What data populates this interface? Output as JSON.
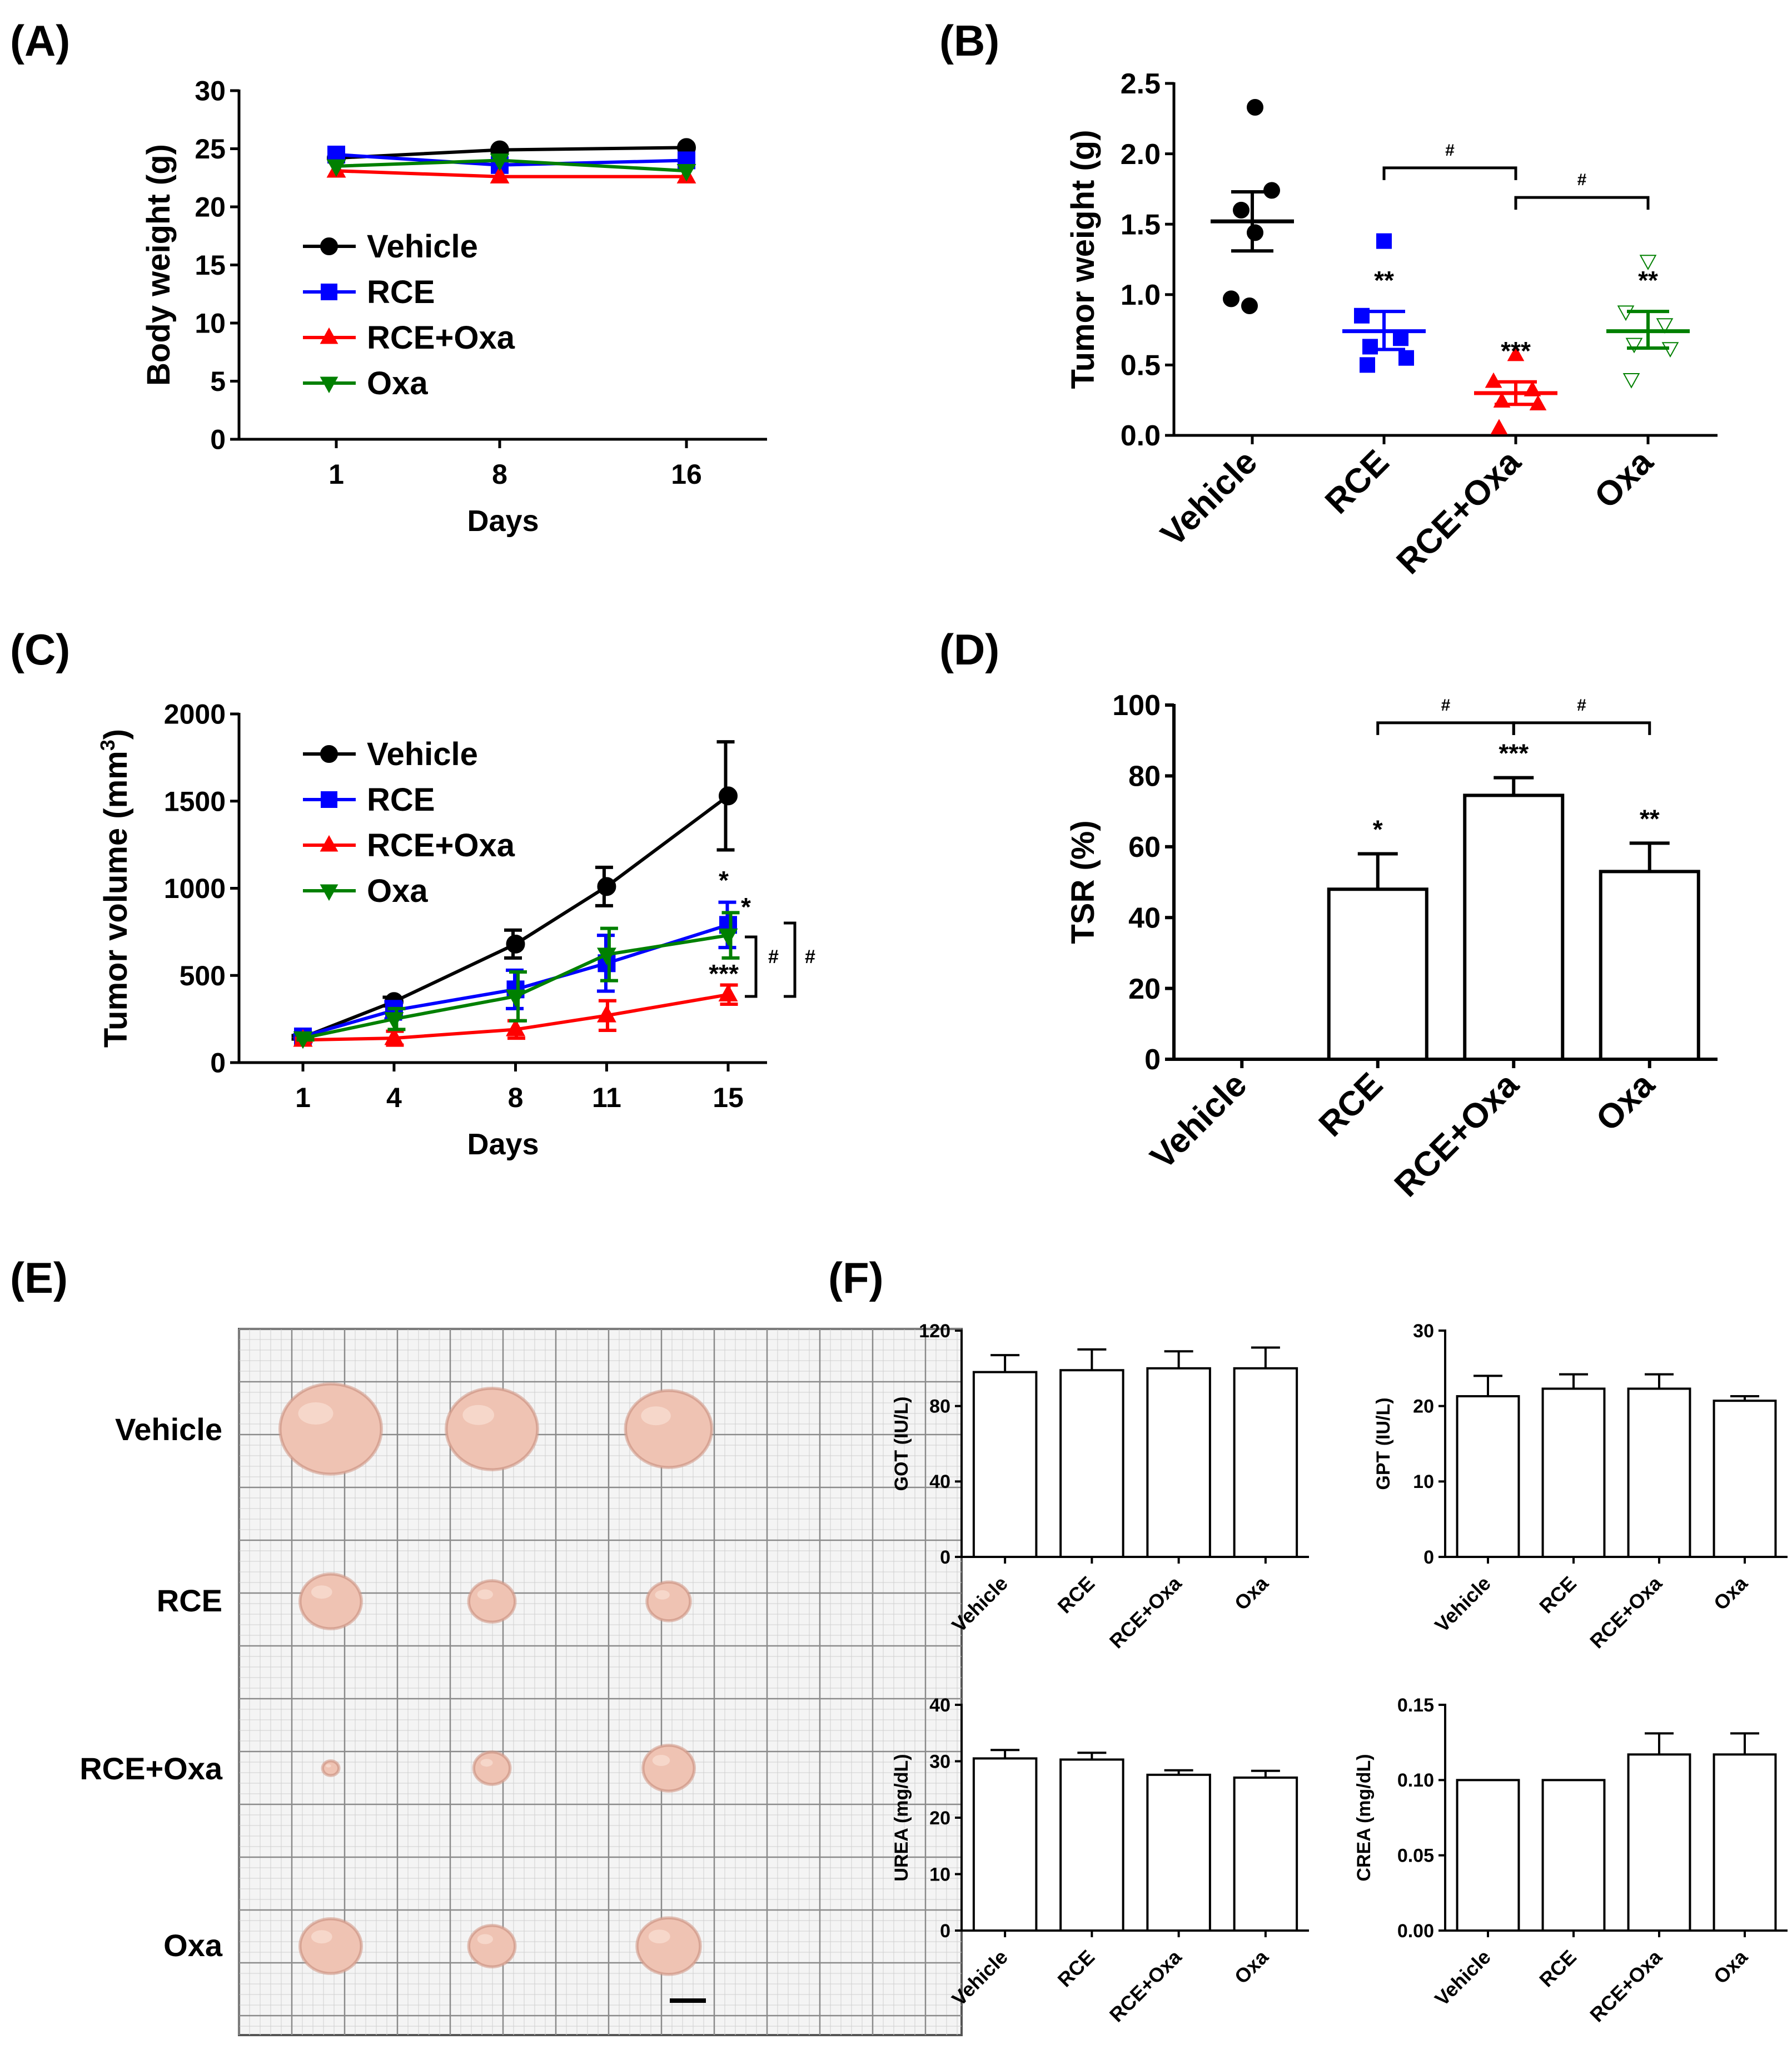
{
  "colors": {
    "vehicle": "#000000",
    "rce": "#0000ff",
    "rce_oxa": "#ff0000",
    "oxa": "#008000",
    "tissue": "#efc3b3",
    "grid_bg": "#f4f4f4"
  },
  "chart_data": [
    {
      "id": "A",
      "panel": "(A)",
      "type": "line",
      "xlabel": "Days",
      "ylabel": "Body weight (g)",
      "x": [
        1,
        8,
        16
      ],
      "x_ticks": [
        "1",
        "8",
        "16"
      ],
      "ylim": [
        0,
        30
      ],
      "y_ticks": [
        "0",
        "5",
        "10",
        "15",
        "20",
        "25",
        "30"
      ],
      "legend_position": "center-left",
      "series": [
        {
          "name": "Vehicle",
          "color": "#000000",
          "marker": "circle",
          "values": [
            24.2,
            24.9,
            25.1
          ]
        },
        {
          "name": "RCE",
          "color": "#0000ff",
          "marker": "square",
          "values": [
            24.5,
            23.6,
            24.0
          ]
        },
        {
          "name": "RCE+Oxa",
          "color": "#ff0000",
          "marker": "triangle-up",
          "values": [
            23.1,
            22.6,
            22.6
          ]
        },
        {
          "name": "Oxa",
          "color": "#008000",
          "marker": "triangle-down",
          "values": [
            23.5,
            24.0,
            23.1
          ]
        }
      ]
    },
    {
      "id": "B",
      "panel": "(B)",
      "type": "scatter",
      "xlabel": "",
      "ylabel": "Tumor weight (g)",
      "categories": [
        "Vehicle",
        "RCE",
        "RCE+Oxa",
        "Oxa"
      ],
      "ylim": [
        0,
        2.5
      ],
      "y_ticks": [
        "0.0",
        "0.5",
        "1.0",
        "1.5",
        "2.0",
        "2.5"
      ],
      "groups": [
        {
          "name": "Vehicle",
          "color": "#000000",
          "marker": "circle",
          "points": [
            2.33,
            1.74,
            1.6,
            1.44,
            0.97,
            0.92
          ],
          "mean": 1.52,
          "sem_upper": 1.73,
          "sem_lower": 1.31,
          "sig": ""
        },
        {
          "name": "RCE",
          "color": "#0000ff",
          "marker": "square",
          "points": [
            1.38,
            0.85,
            0.69,
            0.63,
            0.55,
            0.5
          ],
          "mean": 0.74,
          "sem_upper": 0.88,
          "sem_lower": 0.61,
          "sig": "**"
        },
        {
          "name": "RCE+Oxa",
          "color": "#ff0000",
          "marker": "triangle-up",
          "points": [
            0.57,
            0.38,
            0.32,
            0.24,
            0.22,
            0.05
          ],
          "mean": 0.3,
          "sem_upper": 0.38,
          "sem_lower": 0.22,
          "sig": "***"
        },
        {
          "name": "Oxa",
          "color": "#008000",
          "marker": "triangle-down",
          "points": [
            1.24,
            0.88,
            0.79,
            0.65,
            0.62,
            0.4
          ],
          "mean": 0.74,
          "sem_upper": 0.88,
          "sem_lower": 0.62,
          "sig": "**"
        }
      ],
      "brackets": [
        {
          "from": "RCE",
          "to": "RCE+Oxa",
          "label": "#",
          "y": 1.9
        },
        {
          "from": "RCE+Oxa",
          "to": "Oxa",
          "label": "#",
          "y": 1.69
        }
      ]
    },
    {
      "id": "C",
      "panel": "(C)",
      "type": "line",
      "xlabel": "Days",
      "ylabel": "Tumor volume (mm³)",
      "ylabel_main": "Tumor volume (mm",
      "ylabel_sup": "3",
      "ylabel_end": ")",
      "x": [
        1,
        4,
        8,
        11,
        15
      ],
      "x_ticks": [
        "1",
        "4",
        "8",
        "11",
        "15"
      ],
      "ylim": [
        0,
        2000
      ],
      "y_ticks": [
        "0",
        "500",
        "1000",
        "1500",
        "2000"
      ],
      "legend_position": "top-left",
      "series": [
        {
          "name": "Vehicle",
          "color": "#000000",
          "marker": "circle",
          "values": [
            145,
            350,
            680,
            1010,
            1530
          ],
          "err": [
            10,
            25,
            80,
            110,
            310
          ]
        },
        {
          "name": "RCE",
          "color": "#0000ff",
          "marker": "square",
          "values": [
            150,
            300,
            420,
            570,
            790
          ],
          "err": [
            10,
            50,
            110,
            160,
            130
          ]
        },
        {
          "name": "RCE+Oxa",
          "color": "#ff0000",
          "marker": "triangle-up",
          "values": [
            130,
            140,
            190,
            270,
            390
          ],
          "err": [
            10,
            40,
            50,
            85,
            55
          ]
        },
        {
          "name": "Oxa",
          "color": "#008000",
          "marker": "triangle-down",
          "values": [
            140,
            250,
            380,
            620,
            730
          ],
          "err": [
            10,
            60,
            140,
            150,
            130
          ]
        }
      ],
      "annotations": [
        "*",
        "*",
        "***",
        "#",
        "#"
      ]
    },
    {
      "id": "D",
      "panel": "(D)",
      "type": "bar",
      "xlabel": "",
      "ylabel": "TSR (%)",
      "categories": [
        "Vehicle",
        "RCE",
        "RCE+Oxa",
        "Oxa"
      ],
      "values": [
        0,
        48,
        74.5,
        53
      ],
      "err": [
        0,
        10,
        5,
        8
      ],
      "sig": [
        "",
        "*",
        "***",
        "**"
      ],
      "ylim": [
        0,
        100
      ],
      "y_ticks": [
        "0",
        "20",
        "40",
        "60",
        "80",
        "100"
      ],
      "brackets": [
        {
          "from": "RCE",
          "to": "RCE+Oxa",
          "label": "#",
          "y": 95
        },
        {
          "from": "RCE+Oxa",
          "to": "Oxa",
          "label": "#",
          "y": 95
        }
      ]
    },
    {
      "id": "F1",
      "type": "bar",
      "xlabel": "",
      "ylabel": "GOT (IU/L)",
      "categories": [
        "Vehicle",
        "RCE",
        "RCE+Oxa",
        "Oxa"
      ],
      "values": [
        98,
        99,
        100,
        100
      ],
      "err": [
        9,
        11,
        9,
        11
      ],
      "ylim": [
        0,
        120
      ],
      "y_ticks": [
        "0",
        "40",
        "80",
        "120"
      ]
    },
    {
      "id": "F2",
      "type": "bar",
      "xlabel": "",
      "ylabel": "GPT (IU/L)",
      "categories": [
        "Vehicle",
        "RCE",
        "RCE+Oxa",
        "Oxa"
      ],
      "values": [
        21.3,
        22.3,
        22.3,
        20.7
      ],
      "err": [
        2.7,
        1.9,
        1.9,
        0.6
      ],
      "ylim": [
        0,
        30
      ],
      "y_ticks": [
        "0",
        "10",
        "20",
        "30"
      ]
    },
    {
      "id": "F3",
      "type": "bar",
      "xlabel": "",
      "ylabel": "UREA (mg/dL)",
      "categories": [
        "Vehicle",
        "RCE",
        "RCE+Oxa",
        "Oxa"
      ],
      "values": [
        30.5,
        30.3,
        27.6,
        27.1
      ],
      "err": [
        1.5,
        1.2,
        0.8,
        1.2
      ],
      "ylim": [
        0,
        40
      ],
      "y_ticks": [
        "0",
        "10",
        "20",
        "30",
        "40"
      ]
    },
    {
      "id": "F4",
      "type": "bar",
      "xlabel": "",
      "ylabel": "CREA (mg/dL)",
      "categories": [
        "Vehicle",
        "RCE",
        "RCE+Oxa",
        "Oxa"
      ],
      "values": [
        0.1,
        0.1,
        0.117,
        0.117
      ],
      "err": [
        0,
        0,
        0.014,
        0.014
      ],
      "ylim": [
        0,
        0.15
      ],
      "y_ticks": [
        "0.00",
        "0.05",
        "0.10",
        "0.15"
      ]
    }
  ],
  "panel_e": {
    "panel": "(E)",
    "rows": [
      "Vehicle",
      "RCE",
      "RCE+Oxa",
      "Oxa"
    ],
    "tumor_sizes": [
      [
        1.0,
        0.9,
        0.85
      ],
      [
        0.6,
        0.45,
        0.42
      ],
      [
        0.15,
        0.35,
        0.5
      ],
      [
        0.6,
        0.45,
        0.62
      ]
    ]
  },
  "panel_f_label": "(F)"
}
